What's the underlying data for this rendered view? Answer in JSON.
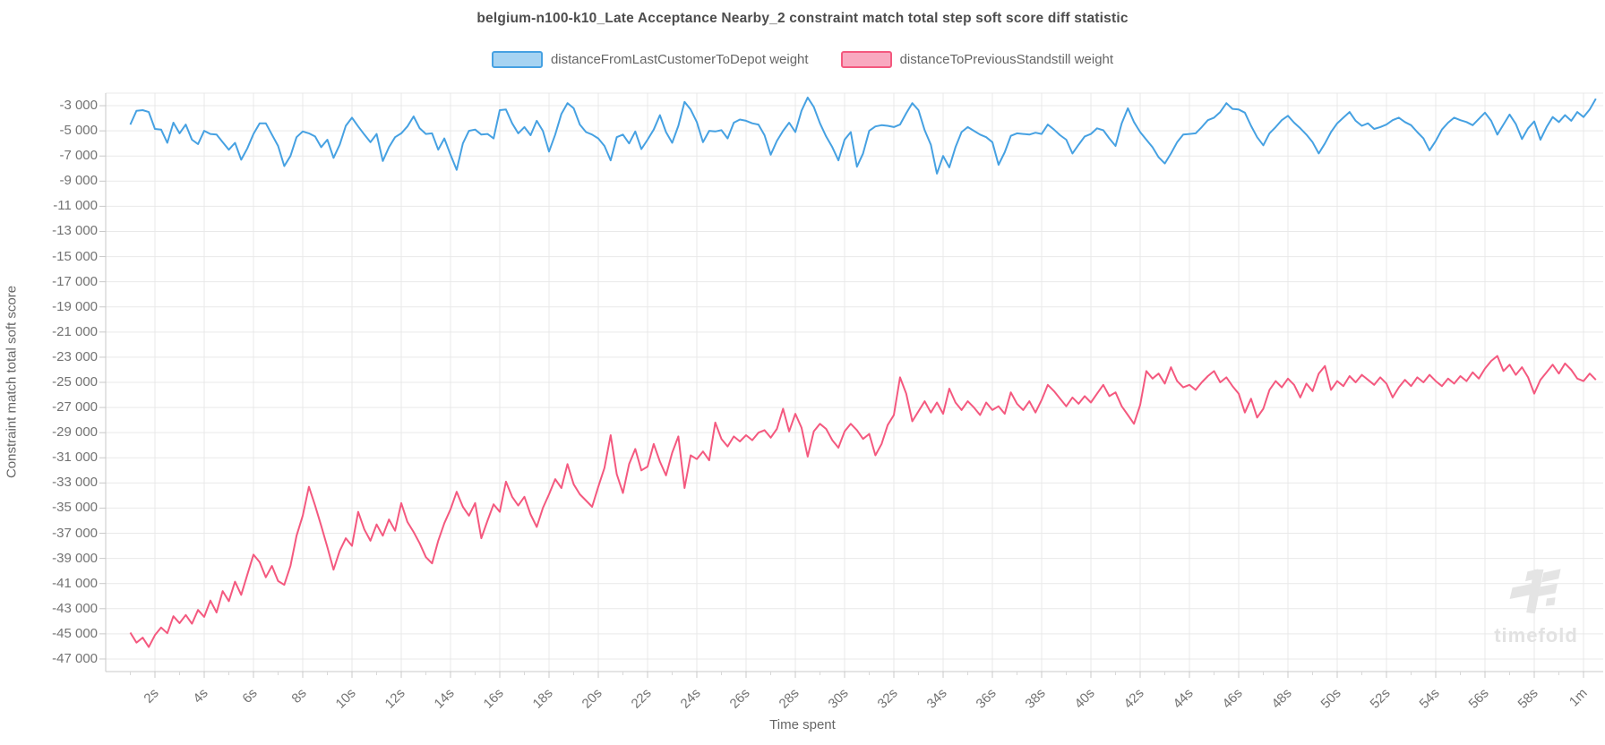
{
  "title": "belgium-n100-k10_Late Acceptance Nearby_2 constraint match total step soft score diff statistic",
  "legend": [
    {
      "label": "distanceFromLastCustomerToDepot weight",
      "line_color": "#46a1e2",
      "fill_color": "#a6d3f2"
    },
    {
      "label": "distanceToPreviousStandstill weight",
      "line_color": "#f4597f",
      "fill_color": "#f9a9c0"
    }
  ],
  "axes": {
    "y_title": "Constraint match total soft score",
    "x_title": "Time spent",
    "y_tick_values": [
      -3000,
      -5000,
      -7000,
      -9000,
      -11000,
      -13000,
      -15000,
      -17000,
      -19000,
      -21000,
      -23000,
      -25000,
      -27000,
      -29000,
      -31000,
      -33000,
      -35000,
      -37000,
      -39000,
      -41000,
      -43000,
      -45000,
      -47000
    ],
    "y_tick_labels": [
      "-3 000",
      "-5 000",
      "-7 000",
      "-9 000",
      "-11 000",
      "-13 000",
      "-15 000",
      "-17 000",
      "-19 000",
      "-21 000",
      "-23 000",
      "-25 000",
      "-27 000",
      "-29 000",
      "-31 000",
      "-33 000",
      "-35 000",
      "-37 000",
      "-39 000",
      "-41 000",
      "-43 000",
      "-45 000",
      "-47 000"
    ],
    "x_tick_seconds": [
      2,
      4,
      6,
      8,
      10,
      12,
      14,
      16,
      18,
      20,
      22,
      24,
      26,
      28,
      30,
      32,
      34,
      36,
      38,
      40,
      42,
      44,
      46,
      48,
      50,
      52,
      54,
      56,
      58,
      60
    ],
    "x_tick_labels": [
      "2s",
      "4s",
      "6s",
      "8s",
      "10s",
      "12s",
      "14s",
      "16s",
      "18s",
      "20s",
      "22s",
      "24s",
      "26s",
      "28s",
      "30s",
      "32s",
      "34s",
      "36s",
      "38s",
      "40s",
      "42s",
      "44s",
      "46s",
      "48s",
      "50s",
      "52s",
      "54s",
      "56s",
      "58s",
      "1m"
    ]
  },
  "watermark": {
    "text": "timefold",
    "color": "#e2e2e2"
  },
  "colors": {
    "grid": "#e9e9e9",
    "axis": "#c9c9c9",
    "tick": "#c9c9c9",
    "minor_tick": "#d9d9d9",
    "tick_text": "#737373",
    "title_text": "#4d4d4d"
  },
  "chart_data": {
    "type": "line",
    "title": "belgium-n100-k10_Late Acceptance Nearby_2 constraint match total step soft score diff statistic",
    "xlabel": "Time spent",
    "ylabel": "Constraint match total soft score",
    "x_unit": "seconds",
    "xlim": [
      0,
      60.8
    ],
    "ylim": [
      -48000,
      -2000
    ],
    "grid": true,
    "legend_position": "top",
    "x_start": 1.0,
    "x_step": 0.25,
    "series": [
      {
        "name": "distanceFromLastCustomerToDepot weight",
        "line_color": "#46a1e2",
        "fill_color": "#a6d3f2",
        "values": [
          -4500,
          -3400,
          -3350,
          -3500,
          -4850,
          -4900,
          -5950,
          -4350,
          -5200,
          -4500,
          -5700,
          -6050,
          -5000,
          -5250,
          -5300,
          -5900,
          -6500,
          -5950,
          -7300,
          -6400,
          -5250,
          -4400,
          -4400,
          -5300,
          -6200,
          -7800,
          -7000,
          -5500,
          -5050,
          -5200,
          -5450,
          -6300,
          -5700,
          -7150,
          -6100,
          -4600,
          -3950,
          -4650,
          -5300,
          -5900,
          -5250,
          -7400,
          -6300,
          -5500,
          -5200,
          -4650,
          -3850,
          -4800,
          -5250,
          -5200,
          -6500,
          -5600,
          -6900,
          -8100,
          -6000,
          -5000,
          -4900,
          -5300,
          -5250,
          -5600,
          -3350,
          -3300,
          -4400,
          -5200,
          -4700,
          -5350,
          -4200,
          -5000,
          -6650,
          -5300,
          -3650,
          -2800,
          -3200,
          -4500,
          -5100,
          -5300,
          -5600,
          -6200,
          -7350,
          -5500,
          -5300,
          -6000,
          -5050,
          -6450,
          -5700,
          -4900,
          -3750,
          -5100,
          -5950,
          -4600,
          -2700,
          -3300,
          -4300,
          -5900,
          -5000,
          -5050,
          -4950,
          -5600,
          -4350,
          -4100,
          -4200,
          -4400,
          -4500,
          -5350,
          -6900,
          -5800,
          -5000,
          -4350,
          -5100,
          -3400,
          -2350,
          -3100,
          -4400,
          -5450,
          -6300,
          -7350,
          -5700,
          -5100,
          -7850,
          -6800,
          -5000,
          -4650,
          -4550,
          -4600,
          -4700,
          -4500,
          -3600,
          -2800,
          -3350,
          -4950,
          -6100,
          -8400,
          -7000,
          -7900,
          -6300,
          -5100,
          -4700,
          -5000,
          -5300,
          -5500,
          -5900,
          -7700,
          -6700,
          -5400,
          -5200,
          -5250,
          -5300,
          -5150,
          -5250,
          -4500,
          -4900,
          -5350,
          -5700,
          -6800,
          -6100,
          -5450,
          -5250,
          -4800,
          -4950,
          -5600,
          -6200,
          -4400,
          -3200,
          -4300,
          -5100,
          -5700,
          -6300,
          -7100,
          -7600,
          -6800,
          -5900,
          -5300,
          -5250,
          -5200,
          -4700,
          -4150,
          -3950,
          -3500,
          -2800,
          -3250,
          -3300,
          -3550,
          -4600,
          -5500,
          -6150,
          -5200,
          -4700,
          -4150,
          -3800,
          -4350,
          -4800,
          -5300,
          -5900,
          -6800,
          -6000,
          -5100,
          -4400,
          -3950,
          -3500,
          -4200,
          -4600,
          -4400,
          -4850,
          -4700,
          -4500,
          -4150,
          -3950,
          -4300,
          -4550,
          -5100,
          -5600,
          -6550,
          -5800,
          -4900,
          -4350,
          -3950,
          -4150,
          -4300,
          -4550,
          -4050,
          -3550,
          -4200,
          -5300,
          -4500,
          -3700,
          -4450,
          -5650,
          -4800,
          -4250,
          -5700,
          -4700,
          -3900,
          -4300,
          -3750,
          -4200,
          -3500,
          -3900,
          -3300,
          -2450
        ]
      },
      {
        "name": "distanceToPreviousStandstill weight",
        "line_color": "#f4597f",
        "fill_color": "#f9a9c0",
        "values": [
          -44900,
          -45700,
          -45300,
          -46050,
          -45100,
          -44500,
          -44950,
          -43600,
          -44150,
          -43500,
          -44200,
          -43100,
          -43650,
          -42350,
          -43300,
          -41600,
          -42400,
          -40850,
          -41900,
          -40300,
          -38700,
          -39300,
          -40500,
          -39600,
          -40800,
          -41100,
          -39600,
          -37200,
          -35600,
          -33300,
          -34800,
          -36400,
          -38100,
          -39900,
          -38400,
          -37400,
          -38000,
          -35300,
          -36700,
          -37600,
          -36300,
          -37200,
          -35900,
          -36800,
          -34600,
          -36100,
          -36900,
          -37800,
          -38900,
          -39400,
          -37600,
          -36200,
          -35100,
          -33700,
          -34900,
          -35600,
          -34600,
          -37400,
          -36000,
          -34700,
          -35300,
          -32900,
          -34100,
          -34800,
          -34100,
          -35500,
          -36500,
          -35000,
          -33900,
          -32700,
          -33400,
          -31500,
          -33100,
          -33900,
          -34400,
          -34900,
          -33300,
          -31800,
          -29200,
          -32300,
          -33800,
          -31500,
          -30300,
          -32000,
          -31700,
          -29900,
          -31300,
          -32400,
          -30600,
          -29300,
          -33400,
          -30800,
          -31100,
          -30500,
          -31200,
          -28200,
          -29500,
          -30100,
          -29300,
          -29700,
          -29200,
          -29600,
          -29000,
          -28800,
          -29400,
          -28700,
          -27100,
          -28900,
          -27500,
          -28600,
          -30900,
          -28900,
          -28300,
          -28700,
          -29600,
          -30200,
          -28900,
          -28300,
          -28800,
          -29500,
          -29100,
          -30800,
          -29900,
          -28400,
          -27600,
          -24600,
          -25900,
          -28100,
          -27300,
          -26500,
          -27400,
          -26600,
          -27500,
          -25500,
          -26600,
          -27200,
          -26500,
          -27000,
          -27600,
          -26600,
          -27200,
          -26900,
          -27500,
          -25800,
          -26700,
          -27200,
          -26500,
          -27400,
          -26400,
          -25200,
          -25700,
          -26300,
          -26900,
          -26200,
          -26700,
          -26100,
          -26600,
          -25900,
          -25200,
          -26100,
          -25800,
          -26900,
          -27600,
          -28300,
          -26800,
          -24100,
          -24700,
          -24300,
          -25100,
          -23800,
          -24900,
          -25400,
          -25200,
          -25600,
          -25000,
          -24500,
          -24100,
          -25000,
          -24600,
          -25300,
          -25900,
          -27400,
          -26300,
          -27800,
          -27100,
          -25600,
          -24900,
          -25400,
          -24700,
          -25200,
          -26200,
          -25100,
          -25700,
          -24300,
          -23700,
          -25600,
          -24900,
          -25300,
          -24500,
          -25000,
          -24400,
          -24800,
          -25200,
          -24600,
          -25100,
          -26200,
          -25400,
          -24800,
          -25300,
          -24600,
          -25000,
          -24400,
          -24900,
          -25300,
          -24700,
          -25100,
          -24500,
          -24900,
          -24200,
          -24700,
          -23900,
          -23300,
          -22900,
          -24100,
          -23600,
          -24400,
          -23800,
          -24600,
          -25900,
          -24800,
          -24200,
          -23600,
          -24300,
          -23500,
          -24000,
          -24700,
          -24900,
          -24300,
          -24800
        ]
      }
    ]
  }
}
